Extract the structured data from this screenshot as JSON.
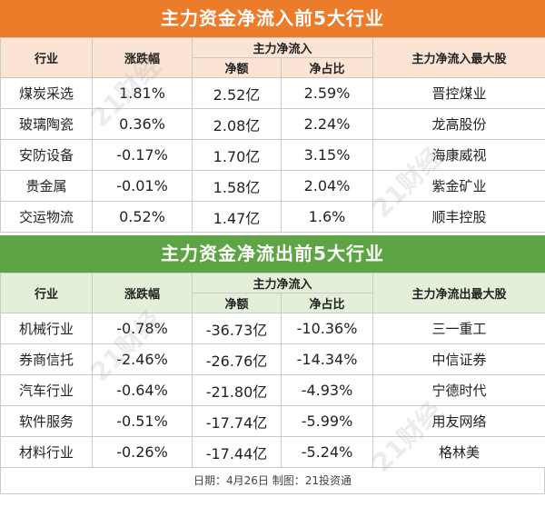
{
  "inflow": {
    "title": "主力资金净流入前5大行业",
    "headers": {
      "industry": "行业",
      "change": "涨跌幅",
      "main_flow": "主力净流入",
      "net_amount": "净额",
      "net_ratio": "净占比",
      "top_stock": "主力净流入最大股"
    },
    "rows": [
      {
        "industry": "煤炭采选",
        "change": "1.81%",
        "net_amount": "2.52亿",
        "net_ratio": "2.59%",
        "top_stock": "晋控煤业"
      },
      {
        "industry": "玻璃陶瓷",
        "change": "0.36%",
        "net_amount": "2.08亿",
        "net_ratio": "2.24%",
        "top_stock": "龙高股份"
      },
      {
        "industry": "安防设备",
        "change": "-0.17%",
        "net_amount": "1.70亿",
        "net_ratio": "3.15%",
        "top_stock": "海康威视"
      },
      {
        "industry": "贵金属",
        "change": "-0.01%",
        "net_amount": "1.58亿",
        "net_ratio": "2.04%",
        "top_stock": "紫金矿业"
      },
      {
        "industry": "交运物流",
        "change": "0.52%",
        "net_amount": "1.47亿",
        "net_ratio": "1.6%",
        "top_stock": "顺丰控股"
      }
    ]
  },
  "outflow": {
    "title": "主力资金净流出前5大行业",
    "headers": {
      "industry": "行业",
      "change": "涨跌幅",
      "main_flow": "主力净流入",
      "net_amount": "净额",
      "net_ratio": "净占比",
      "top_stock": "主力净流出最大股"
    },
    "rows": [
      {
        "industry": "机械行业",
        "change": "-0.78%",
        "net_amount": "-36.73亿",
        "net_ratio": "-10.36%",
        "top_stock": "三一重工"
      },
      {
        "industry": "券商信托",
        "change": "-2.46%",
        "net_amount": "-26.76亿",
        "net_ratio": "-14.34%",
        "top_stock": "中信证券"
      },
      {
        "industry": "汽车行业",
        "change": "-0.64%",
        "net_amount": "-21.80亿",
        "net_ratio": "-4.93%",
        "top_stock": "宁德时代"
      },
      {
        "industry": "软件服务",
        "change": "-0.51%",
        "net_amount": "-17.74亿",
        "net_ratio": "-5.99%",
        "top_stock": "用友网络"
      },
      {
        "industry": "材料行业",
        "change": "-0.26%",
        "net_amount": "-17.44亿",
        "net_ratio": "-5.24%",
        "top_stock": "格林美"
      }
    ]
  },
  "footer": "日期：4月26日 制图：21投资通",
  "watermark": "21财经"
}
